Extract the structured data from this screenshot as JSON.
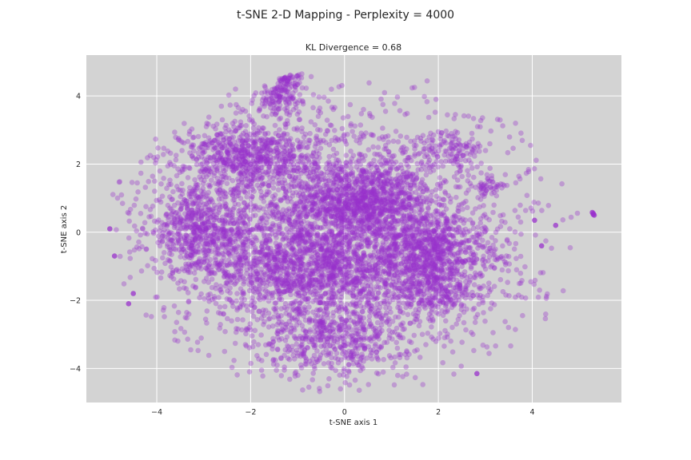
{
  "figure": {
    "suptitle": "t-SNE 2-D Mapping - Perplexity = 4000"
  },
  "chart_data": {
    "type": "scatter",
    "title": "KL Divergence = 0.68",
    "xlabel": "t-SNE axis 1",
    "ylabel": "t-SNE axis 2",
    "xlim": [
      -5.5,
      5.9
    ],
    "ylim": [
      -5.0,
      5.2
    ],
    "xticks": [
      -4,
      -2,
      0,
      2,
      4
    ],
    "yticks": [
      -4,
      -2,
      0,
      2,
      4
    ],
    "xtick_labels": [
      "−4",
      "−2",
      "0",
      "2",
      "4"
    ],
    "ytick_labels": [
      "−4",
      "−2",
      "0",
      "2",
      "4"
    ],
    "grid": true,
    "background_color": "#d3d3d3",
    "point_color": "#9932cc",
    "point_alpha": 0.35,
    "clusters": [
      {
        "center": [
          0.4,
          0.9
        ],
        "spread": [
          0.7,
          0.55
        ],
        "count": 900
      },
      {
        "center": [
          -0.9,
          -1.0
        ],
        "spread": [
          1.0,
          0.7
        ],
        "count": 1000
      },
      {
        "center": [
          1.8,
          -0.6
        ],
        "spread": [
          0.6,
          0.6
        ],
        "count": 700
      },
      {
        "center": [
          -3.1,
          0.1
        ],
        "spread": [
          0.55,
          0.6
        ],
        "count": 550
      },
      {
        "center": [
          -2.0,
          2.2
        ],
        "spread": [
          0.7,
          0.5
        ],
        "count": 650
      },
      {
        "center": [
          -1.4,
          3.9
        ],
        "spread": [
          0.25,
          0.25
        ],
        "count": 120
      },
      {
        "center": [
          -1.2,
          4.5
        ],
        "spread": [
          0.15,
          0.2
        ],
        "count": 60
      },
      {
        "center": [
          2.3,
          2.4
        ],
        "spread": [
          0.35,
          0.3
        ],
        "count": 90
      },
      {
        "center": [
          3.1,
          1.3
        ],
        "spread": [
          0.15,
          0.15
        ],
        "count": 40
      },
      {
        "center": [
          -0.2,
          -3.1
        ],
        "spread": [
          0.8,
          0.55
        ],
        "count": 450
      },
      {
        "center": [
          1.9,
          -1.8
        ],
        "spread": [
          0.5,
          0.35
        ],
        "count": 200
      },
      {
        "center": [
          0.0,
          0.0
        ],
        "spread": [
          2.0,
          1.9
        ],
        "count": 2600
      }
    ],
    "outliers": [
      [
        5.3,
        0.55
      ],
      [
        5.3,
        0.52
      ],
      [
        5.28,
        0.58
      ],
      [
        5.32,
        0.5
      ],
      [
        2.82,
        -4.15
      ],
      [
        4.5,
        0.2
      ],
      [
        4.2,
        -0.4
      ],
      [
        4.05,
        0.35
      ],
      [
        -5.0,
        0.1
      ],
      [
        -4.9,
        -0.7
      ],
      [
        -4.5,
        -1.8
      ],
      [
        -4.6,
        -2.1
      ]
    ]
  }
}
